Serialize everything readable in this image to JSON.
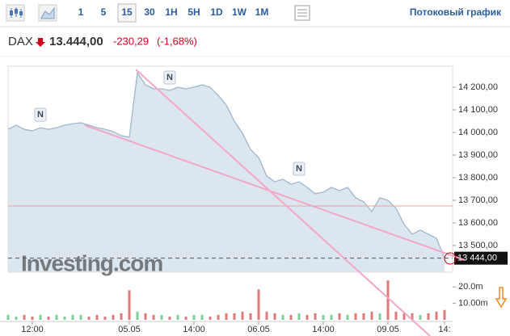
{
  "toolbar": {
    "intervals": [
      "1",
      "5",
      "15",
      "30",
      "1H",
      "5H",
      "1D",
      "1W",
      "1M"
    ],
    "active_interval": 2,
    "stream_label": "Потоковый график"
  },
  "header": {
    "symbol": "DAX",
    "price": "13.444,00",
    "change": "-230,29",
    "change_percent": "(-1,68%)"
  },
  "chart_data": {
    "type": "area",
    "color": "#9fb6cc",
    "fill": "#dce6ef",
    "categories": [
      null,
      null,
      null,
      "12:00",
      null,
      null,
      null,
      null,
      null,
      null,
      null,
      null,
      null,
      null,
      null,
      "05.05",
      null,
      null,
      null,
      null,
      null,
      null,
      null,
      "14:00",
      null,
      null,
      null,
      null,
      null,
      null,
      null,
      "06.05",
      null,
      null,
      null,
      null,
      null,
      null,
      null,
      "14:00",
      null,
      null,
      null,
      null,
      null,
      null,
      null,
      "09.05",
      null,
      null,
      null,
      null,
      null,
      null,
      "14:"
    ],
    "values": [
      14014,
      14032,
      14014,
      14007,
      14021,
      14014,
      14021,
      14032,
      14039,
      14043,
      14032,
      14021,
      14014,
      14004,
      13986,
      13979,
      14264,
      14211,
      14193,
      14193,
      14186,
      14200,
      14193,
      14200,
      14211,
      14200,
      14164,
      14121,
      14050,
      13996,
      13925,
      13889,
      13807,
      13782,
      13793,
      13771,
      13782,
      13757,
      13729,
      13736,
      13757,
      13743,
      13757,
      13711,
      13693,
      13650,
      13711,
      13700,
      13664,
      13593,
      13550,
      13568,
      13550,
      13532,
      13444
    ],
    "ylim": [
      13382,
      14293
    ],
    "yticks": [
      {
        "value": 13500,
        "label": "13 500,00"
      },
      {
        "value": 13600,
        "label": "13 600,00"
      },
      {
        "value": 13700,
        "label": "13 700,00"
      },
      {
        "value": 13800,
        "label": "13 800,00"
      },
      {
        "value": 13900,
        "label": "13 900,00"
      },
      {
        "value": 14000,
        "label": "14 000,00"
      },
      {
        "value": 14100,
        "label": "14 100,00"
      },
      {
        "value": 14200,
        "label": "14 200,00"
      }
    ],
    "last_price": {
      "value": 13444,
      "label": "13 444,00"
    },
    "reference_level": 13675,
    "news": {
      "label": "N",
      "at": [
        4,
        20,
        36
      ]
    },
    "watermark": "Investing.com",
    "volume": {
      "values": [
        3,
        2,
        3,
        2,
        3,
        2,
        3,
        2,
        3,
        3,
        2,
        3,
        2,
        3,
        4,
        18,
        5,
        4,
        3,
        3,
        2,
        3,
        2,
        3,
        3,
        2,
        3,
        4,
        4,
        5,
        4,
        18.5,
        5,
        4,
        3,
        3,
        4,
        3,
        4,
        3,
        3,
        4,
        3,
        4,
        4,
        5,
        4,
        24,
        5,
        4,
        4,
        3,
        4,
        5,
        6
      ],
      "ylim": [
        0,
        25
      ],
      "yticks": [
        {
          "value": 20,
          "label": "20.0m"
        },
        {
          "value": 10,
          "label": "10.00m"
        }
      ],
      "up_color": "#7fcf9a",
      "down_color": "#e07b7b"
    }
  }
}
